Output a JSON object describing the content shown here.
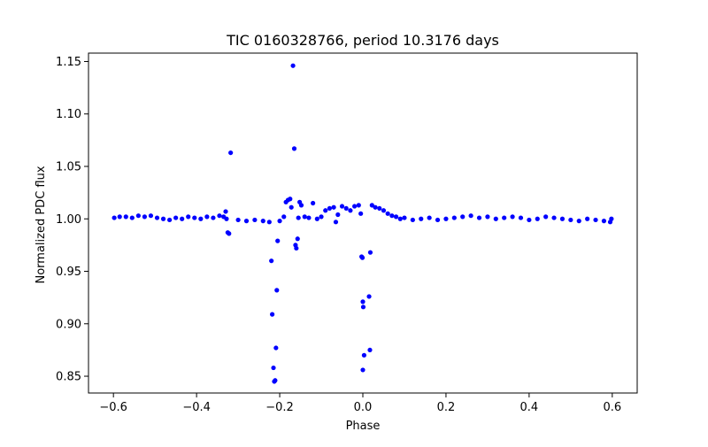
{
  "chart_data": {
    "type": "scatter",
    "title": "TIC 0160328766, period 10.3176 days",
    "xlabel": "Phase",
    "ylabel": "Normalized PDC flux",
    "xlim": [
      -0.66,
      0.66
    ],
    "ylim": [
      0.834,
      1.158
    ],
    "xticks": [
      -0.6,
      -0.4,
      -0.2,
      0.0,
      0.2,
      0.4,
      0.6
    ],
    "xtick_labels": [
      "−0.6",
      "−0.4",
      "−0.2",
      "0.0",
      "0.2",
      "0.4",
      "0.6"
    ],
    "yticks": [
      0.85,
      0.9,
      0.95,
      1.0,
      1.05,
      1.1,
      1.15
    ],
    "ytick_labels": [
      "0.85",
      "0.90",
      "0.95",
      "1.00",
      "1.05",
      "1.10",
      "1.15"
    ],
    "grid": false,
    "marker_color": "#0000ff",
    "points": [
      [
        -0.598,
        1.001
      ],
      [
        -0.585,
        1.002
      ],
      [
        -0.57,
        1.002
      ],
      [
        -0.555,
        1.001
      ],
      [
        -0.54,
        1.003
      ],
      [
        -0.525,
        1.002
      ],
      [
        -0.51,
        1.003
      ],
      [
        -0.495,
        1.001
      ],
      [
        -0.48,
        1.0
      ],
      [
        -0.465,
        0.999
      ],
      [
        -0.45,
        1.001
      ],
      [
        -0.435,
        1.0
      ],
      [
        -0.42,
        1.002
      ],
      [
        -0.405,
        1.001
      ],
      [
        -0.39,
        1.0
      ],
      [
        -0.375,
        1.002
      ],
      [
        -0.36,
        1.001
      ],
      [
        -0.345,
        1.003
      ],
      [
        -0.335,
        1.002
      ],
      [
        -0.33,
        1.007
      ],
      [
        -0.328,
        1.0
      ],
      [
        -0.325,
        0.987
      ],
      [
        -0.322,
        0.986
      ],
      [
        -0.318,
        1.063
      ],
      [
        -0.3,
        0.999
      ],
      [
        -0.28,
        0.998
      ],
      [
        -0.26,
        0.999
      ],
      [
        -0.24,
        0.998
      ],
      [
        -0.225,
        0.997
      ],
      [
        -0.22,
        0.96
      ],
      [
        -0.218,
        0.909
      ],
      [
        -0.215,
        0.858
      ],
      [
        -0.213,
        0.845
      ],
      [
        -0.211,
        0.846
      ],
      [
        -0.209,
        0.877
      ],
      [
        -0.207,
        0.932
      ],
      [
        -0.205,
        0.979
      ],
      [
        -0.2,
        0.998
      ],
      [
        -0.19,
        1.002
      ],
      [
        -0.185,
        1.016
      ],
      [
        -0.18,
        1.018
      ],
      [
        -0.175,
        1.019
      ],
      [
        -0.172,
        1.011
      ],
      [
        -0.168,
        1.146
      ],
      [
        -0.165,
        1.067
      ],
      [
        -0.162,
        0.975
      ],
      [
        -0.16,
        0.972
      ],
      [
        -0.157,
        0.981
      ],
      [
        -0.155,
        1.001
      ],
      [
        -0.152,
        1.016
      ],
      [
        -0.148,
        1.013
      ],
      [
        -0.14,
        1.002
      ],
      [
        -0.13,
        1.001
      ],
      [
        -0.12,
        1.015
      ],
      [
        -0.11,
        1.0
      ],
      [
        -0.1,
        1.002
      ],
      [
        -0.09,
        1.008
      ],
      [
        -0.08,
        1.01
      ],
      [
        -0.07,
        1.011
      ],
      [
        -0.065,
        0.997
      ],
      [
        -0.06,
        1.004
      ],
      [
        -0.05,
        1.012
      ],
      [
        -0.04,
        1.01
      ],
      [
        -0.03,
        1.008
      ],
      [
        -0.02,
        1.012
      ],
      [
        -0.01,
        1.013
      ],
      [
        -0.005,
        1.005
      ],
      [
        -0.003,
        0.964
      ],
      [
        -0.001,
        0.963
      ],
      [
        0.0,
        0.921
      ],
      [
        0.001,
        0.916
      ],
      [
        0.003,
        0.87
      ],
      [
        0.0,
        0.856
      ],
      [
        0.015,
        0.926
      ],
      [
        0.018,
        0.968
      ],
      [
        0.017,
        0.875
      ],
      [
        0.022,
        1.013
      ],
      [
        0.03,
        1.011
      ],
      [
        0.04,
        1.01
      ],
      [
        0.05,
        1.008
      ],
      [
        0.06,
        1.005
      ],
      [
        0.07,
        1.003
      ],
      [
        0.08,
        1.002
      ],
      [
        0.09,
        1.0
      ],
      [
        0.1,
        1.001
      ],
      [
        0.12,
        0.999
      ],
      [
        0.14,
        1.0
      ],
      [
        0.16,
        1.001
      ],
      [
        0.18,
        0.999
      ],
      [
        0.2,
        1.0
      ],
      [
        0.22,
        1.001
      ],
      [
        0.24,
        1.002
      ],
      [
        0.26,
        1.003
      ],
      [
        0.28,
        1.001
      ],
      [
        0.3,
        1.002
      ],
      [
        0.32,
        1.0
      ],
      [
        0.34,
        1.001
      ],
      [
        0.36,
        1.002
      ],
      [
        0.38,
        1.001
      ],
      [
        0.4,
        0.999
      ],
      [
        0.42,
        1.0
      ],
      [
        0.44,
        1.002
      ],
      [
        0.46,
        1.001
      ],
      [
        0.48,
        1.0
      ],
      [
        0.5,
        0.999
      ],
      [
        0.52,
        0.998
      ],
      [
        0.54,
        1.0
      ],
      [
        0.56,
        0.999
      ],
      [
        0.58,
        0.998
      ],
      [
        0.595,
        0.997
      ],
      [
        0.598,
        1.0
      ]
    ]
  }
}
